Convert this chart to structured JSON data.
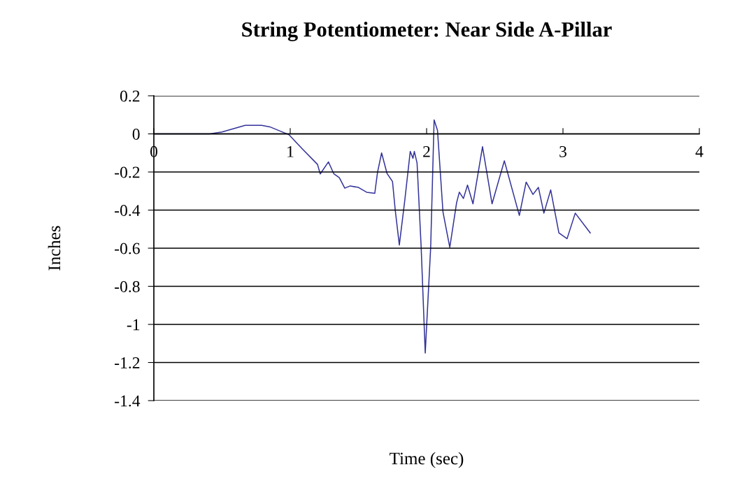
{
  "chart_data": {
    "type": "line",
    "title": "String Potentiometer: Near Side A-Pillar",
    "xlabel": "Time (sec)",
    "ylabel": "Inches",
    "xlim": [
      0,
      4
    ],
    "xticks": [
      0,
      1,
      2,
      3,
      4
    ],
    "ylim": [
      -1.4,
      0.2
    ],
    "yticks": [
      0.2,
      0,
      -0.2,
      -0.4,
      -0.6,
      -0.8,
      -1,
      -1.2,
      -1.4
    ],
    "grid": "y",
    "legend": false,
    "marker": "none",
    "line_style": "solid",
    "series": [
      {
        "color": "#333399",
        "x": [
          0,
          0.41,
          0.5,
          0.67,
          0.79,
          0.85,
          0.99,
          1.09,
          1.2,
          1.22,
          1.28,
          1.32,
          1.36,
          1.4,
          1.44,
          1.5,
          1.56,
          1.62,
          1.64,
          1.67,
          1.71,
          1.75,
          1.77,
          1.8,
          1.84,
          1.88,
          1.9,
          1.91,
          1.93,
          1.96,
          1.99,
          2.03,
          2.055,
          2.08,
          2.12,
          2.17,
          2.22,
          2.24,
          2.27,
          2.3,
          2.34,
          2.41,
          2.48,
          2.57,
          2.68,
          2.73,
          2.78,
          2.82,
          2.86,
          2.91,
          2.97,
          3.03,
          3.09,
          3.2
        ],
        "values": [
          0,
          0,
          0.01,
          0.045,
          0.045,
          0.037,
          -0.004,
          -0.08,
          -0.16,
          -0.21,
          -0.147,
          -0.21,
          -0.23,
          -0.285,
          -0.273,
          -0.281,
          -0.306,
          -0.312,
          -0.202,
          -0.1,
          -0.208,
          -0.25,
          -0.4,
          -0.583,
          -0.349,
          -0.092,
          -0.128,
          -0.092,
          -0.153,
          -0.593,
          -1.15,
          -0.593,
          0.073,
          0.018,
          -0.41,
          -0.596,
          -0.361,
          -0.306,
          -0.339,
          -0.269,
          -0.367,
          -0.067,
          -0.367,
          -0.141,
          -0.428,
          -0.253,
          -0.318,
          -0.281,
          -0.416,
          -0.294,
          -0.52,
          -0.55,
          -0.416,
          -0.52
        ]
      }
    ]
  }
}
